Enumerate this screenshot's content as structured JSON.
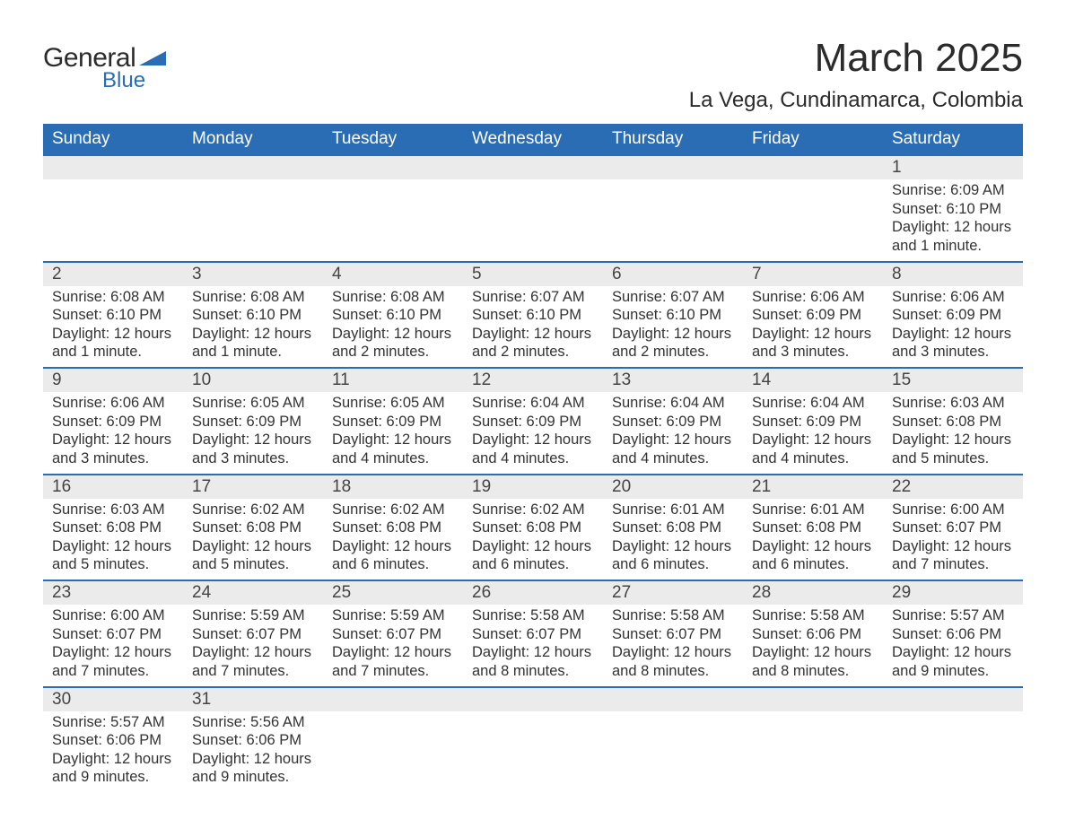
{
  "logo": {
    "text1": "General",
    "text2": "Blue"
  },
  "title": "March 2025",
  "location": "La Vega, Cundinamarca, Colombia",
  "colors": {
    "header_bg": "#2a6db5",
    "header_text": "#ffffff",
    "daynum_bg": "#ebebeb",
    "row_border": "#2a6db5",
    "body_text": "#333333",
    "logo_blue": "#2a6db5"
  },
  "weekdays": [
    "Sunday",
    "Monday",
    "Tuesday",
    "Wednesday",
    "Thursday",
    "Friday",
    "Saturday"
  ],
  "weeks": [
    [
      null,
      null,
      null,
      null,
      null,
      null,
      {
        "day": "1",
        "sunrise": "6:09 AM",
        "sunset": "6:10 PM",
        "daylight": "12 hours and 1 minute."
      }
    ],
    [
      {
        "day": "2",
        "sunrise": "6:08 AM",
        "sunset": "6:10 PM",
        "daylight": "12 hours and 1 minute."
      },
      {
        "day": "3",
        "sunrise": "6:08 AM",
        "sunset": "6:10 PM",
        "daylight": "12 hours and 1 minute."
      },
      {
        "day": "4",
        "sunrise": "6:08 AM",
        "sunset": "6:10 PM",
        "daylight": "12 hours and 2 minutes."
      },
      {
        "day": "5",
        "sunrise": "6:07 AM",
        "sunset": "6:10 PM",
        "daylight": "12 hours and 2 minutes."
      },
      {
        "day": "6",
        "sunrise": "6:07 AM",
        "sunset": "6:10 PM",
        "daylight": "12 hours and 2 minutes."
      },
      {
        "day": "7",
        "sunrise": "6:06 AM",
        "sunset": "6:09 PM",
        "daylight": "12 hours and 3 minutes."
      },
      {
        "day": "8",
        "sunrise": "6:06 AM",
        "sunset": "6:09 PM",
        "daylight": "12 hours and 3 minutes."
      }
    ],
    [
      {
        "day": "9",
        "sunrise": "6:06 AM",
        "sunset": "6:09 PM",
        "daylight": "12 hours and 3 minutes."
      },
      {
        "day": "10",
        "sunrise": "6:05 AM",
        "sunset": "6:09 PM",
        "daylight": "12 hours and 3 minutes."
      },
      {
        "day": "11",
        "sunrise": "6:05 AM",
        "sunset": "6:09 PM",
        "daylight": "12 hours and 4 minutes."
      },
      {
        "day": "12",
        "sunrise": "6:04 AM",
        "sunset": "6:09 PM",
        "daylight": "12 hours and 4 minutes."
      },
      {
        "day": "13",
        "sunrise": "6:04 AM",
        "sunset": "6:09 PM",
        "daylight": "12 hours and 4 minutes."
      },
      {
        "day": "14",
        "sunrise": "6:04 AM",
        "sunset": "6:09 PM",
        "daylight": "12 hours and 4 minutes."
      },
      {
        "day": "15",
        "sunrise": "6:03 AM",
        "sunset": "6:08 PM",
        "daylight": "12 hours and 5 minutes."
      }
    ],
    [
      {
        "day": "16",
        "sunrise": "6:03 AM",
        "sunset": "6:08 PM",
        "daylight": "12 hours and 5 minutes."
      },
      {
        "day": "17",
        "sunrise": "6:02 AM",
        "sunset": "6:08 PM",
        "daylight": "12 hours and 5 minutes."
      },
      {
        "day": "18",
        "sunrise": "6:02 AM",
        "sunset": "6:08 PM",
        "daylight": "12 hours and 6 minutes."
      },
      {
        "day": "19",
        "sunrise": "6:02 AM",
        "sunset": "6:08 PM",
        "daylight": "12 hours and 6 minutes."
      },
      {
        "day": "20",
        "sunrise": "6:01 AM",
        "sunset": "6:08 PM",
        "daylight": "12 hours and 6 minutes."
      },
      {
        "day": "21",
        "sunrise": "6:01 AM",
        "sunset": "6:08 PM",
        "daylight": "12 hours and 6 minutes."
      },
      {
        "day": "22",
        "sunrise": "6:00 AM",
        "sunset": "6:07 PM",
        "daylight": "12 hours and 7 minutes."
      }
    ],
    [
      {
        "day": "23",
        "sunrise": "6:00 AM",
        "sunset": "6:07 PM",
        "daylight": "12 hours and 7 minutes."
      },
      {
        "day": "24",
        "sunrise": "5:59 AM",
        "sunset": "6:07 PM",
        "daylight": "12 hours and 7 minutes."
      },
      {
        "day": "25",
        "sunrise": "5:59 AM",
        "sunset": "6:07 PM",
        "daylight": "12 hours and 7 minutes."
      },
      {
        "day": "26",
        "sunrise": "5:58 AM",
        "sunset": "6:07 PM",
        "daylight": "12 hours and 8 minutes."
      },
      {
        "day": "27",
        "sunrise": "5:58 AM",
        "sunset": "6:07 PM",
        "daylight": "12 hours and 8 minutes."
      },
      {
        "day": "28",
        "sunrise": "5:58 AM",
        "sunset": "6:06 PM",
        "daylight": "12 hours and 8 minutes."
      },
      {
        "day": "29",
        "sunrise": "5:57 AM",
        "sunset": "6:06 PM",
        "daylight": "12 hours and 9 minutes."
      }
    ],
    [
      {
        "day": "30",
        "sunrise": "5:57 AM",
        "sunset": "6:06 PM",
        "daylight": "12 hours and 9 minutes."
      },
      {
        "day": "31",
        "sunrise": "5:56 AM",
        "sunset": "6:06 PM",
        "daylight": "12 hours and 9 minutes."
      },
      null,
      null,
      null,
      null,
      null
    ]
  ],
  "labels": {
    "sunrise": "Sunrise:",
    "sunset": "Sunset:",
    "daylight": "Daylight:"
  }
}
